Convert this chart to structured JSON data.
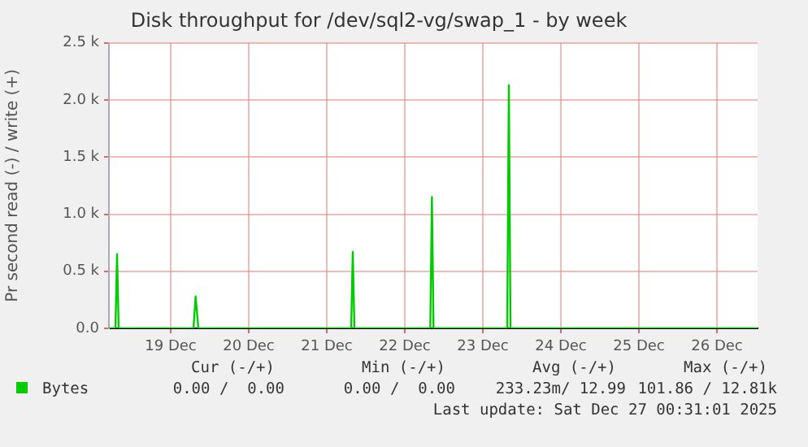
{
  "chart_data": {
    "type": "line",
    "title": "Disk throughput for /dev/sql2-vg/swap_1 - by week",
    "ylabel": "Pr second read (-) / write (+)",
    "xlim": [
      "2025-12-18T17:00",
      "2025-12-27T00:30"
    ],
    "xticks": [
      {
        "value": "2025-12-19T12:00",
        "label": "19 Dec"
      },
      {
        "value": "2025-12-20T12:00",
        "label": "20 Dec"
      },
      {
        "value": "2025-12-21T12:00",
        "label": "21 Dec"
      },
      {
        "value": "2025-12-22T12:00",
        "label": "22 Dec"
      },
      {
        "value": "2025-12-23T12:00",
        "label": "23 Dec"
      },
      {
        "value": "2025-12-24T12:00",
        "label": "24 Dec"
      },
      {
        "value": "2025-12-25T12:00",
        "label": "25 Dec"
      },
      {
        "value": "2025-12-26T12:00",
        "label": "26 Dec"
      }
    ],
    "ylim": [
      0,
      2500
    ],
    "yticks": [
      {
        "value": 0,
        "label": "0.0"
      },
      {
        "value": 500,
        "label": "0.5 k"
      },
      {
        "value": 1000,
        "label": "1.0 k"
      },
      {
        "value": 1500,
        "label": "1.5 k"
      },
      {
        "value": 2000,
        "label": "2.0 k"
      },
      {
        "value": 2500,
        "label": "2.5 k"
      }
    ],
    "series": [
      {
        "name": "Bytes",
        "color": "#00cc00",
        "x": [
          "2025-12-18T17:00",
          "2025-12-18T19:00",
          "2025-12-18T19:30",
          "2025-12-18T20:00",
          "2025-12-19T19:00",
          "2025-12-19T19:40",
          "2025-12-19T20:30",
          "2025-12-21T19:30",
          "2025-12-21T20:00",
          "2025-12-21T20:30",
          "2025-12-22T19:50",
          "2025-12-22T20:20",
          "2025-12-22T20:50",
          "2025-12-23T19:30",
          "2025-12-23T20:00",
          "2025-12-23T20:30",
          "2025-12-27T00:30"
        ],
        "values": [
          0,
          0,
          650,
          0,
          0,
          280,
          0,
          0,
          670,
          0,
          0,
          1150,
          0,
          0,
          2130,
          0,
          0
        ]
      }
    ],
    "grid": true,
    "legend": "bottom left",
    "marker": "none",
    "line_style": "solid",
    "annotations": [
      "Cur (-/+)",
      "Min (-/+)",
      "Avg (-/+)",
      "Max (-/+)",
      "0.00 /  0.00",
      "0.00 /  0.00",
      "233.23m/ 12.99",
      "101.86 / 12.81k",
      "Last update: Sat Dec 27 00:31:01 2025"
    ]
  }
}
